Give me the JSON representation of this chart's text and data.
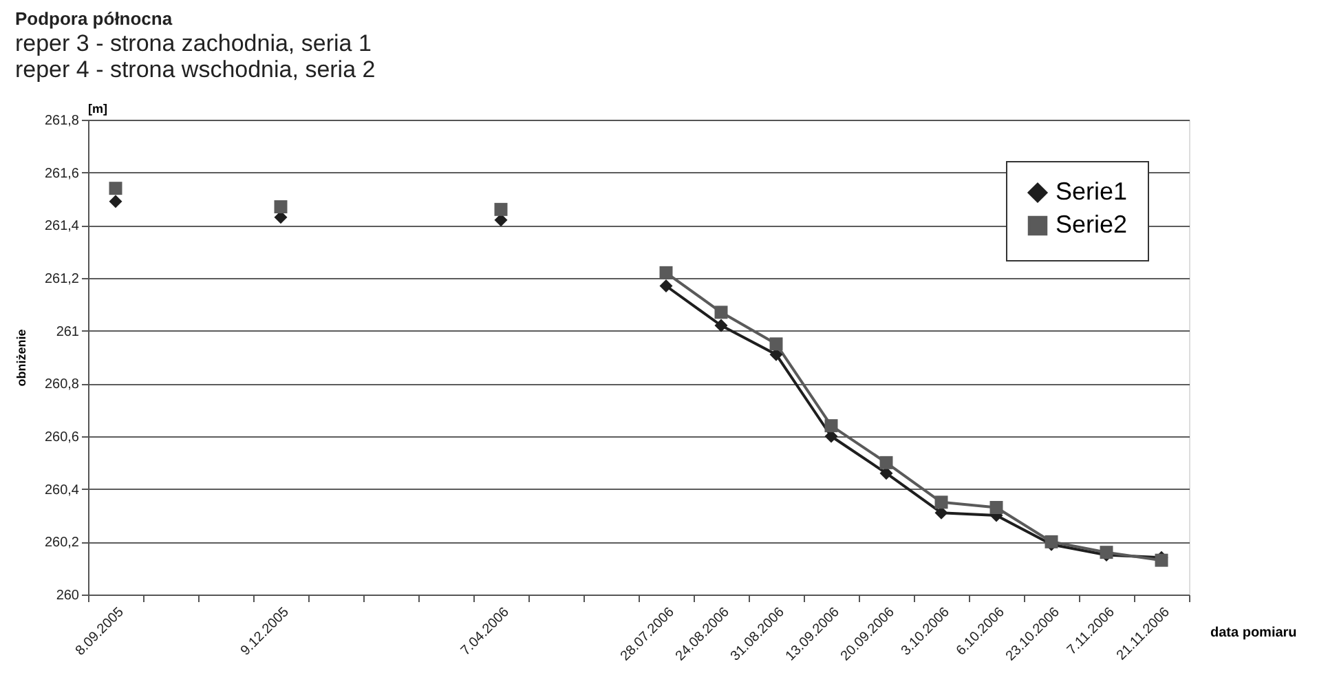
{
  "chart_data": {
    "type": "line",
    "title": "Podpora północna",
    "subtitle": [
      "reper 3 - strona zachodnia, seria 1",
      "reper 4 - strona wschodnia, seria 2"
    ],
    "xlabel": "data pomiaru",
    "ylabel": "obniżenie",
    "annotations": [
      "[m]"
    ],
    "categories": [
      "8.09.2005",
      null,
      null,
      "9.12.2005",
      null,
      null,
      null,
      "7.04.2006",
      null,
      null,
      "28.07.2006",
      "24.08.2006",
      "31.08.2006",
      "13.09.2006",
      "20.09.2006",
      "3.10.2006",
      "6.10.2006",
      "23.10.2006",
      "7.11.2006",
      "21.11.2006"
    ],
    "series": [
      {
        "name": "Serie1",
        "color": "#1e1e1e",
        "marker": "diamond",
        "values": [
          261.49,
          null,
          null,
          261.43,
          null,
          null,
          null,
          261.42,
          null,
          null,
          261.17,
          261.02,
          260.91,
          260.6,
          260.46,
          260.31,
          260.3,
          260.19,
          260.15,
          260.14
        ]
      },
      {
        "name": "Serie2",
        "color": "#5a5a5a",
        "marker": "square",
        "values": [
          261.54,
          null,
          null,
          261.47,
          null,
          null,
          null,
          261.46,
          null,
          null,
          261.22,
          261.07,
          260.95,
          260.64,
          260.5,
          260.35,
          260.33,
          260.2,
          260.16,
          260.13
        ]
      }
    ],
    "ylim": [
      260,
      261.8
    ],
    "yticks": [
      260,
      {
        "value": 260.2,
        "label": "260,2"
      },
      {
        "value": 260.4,
        "label": "260,4"
      },
      {
        "value": 260.6,
        "label": "260,6"
      },
      {
        "value": 260.8,
        "label": "260,8"
      },
      261,
      {
        "value": 261.2,
        "label": "261,2"
      },
      {
        "value": 261.4,
        "label": "261,4"
      },
      {
        "value": 261.6,
        "label": "261,6"
      },
      {
        "value": 261.8,
        "label": "261,8"
      }
    ],
    "grid": "y",
    "legend": "top right"
  }
}
